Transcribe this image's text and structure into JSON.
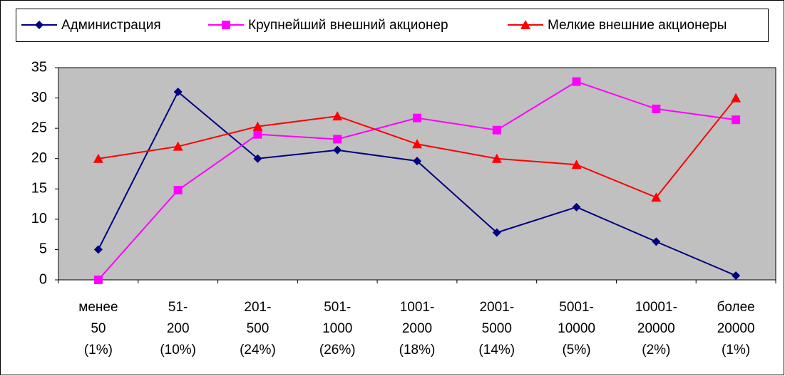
{
  "chart_data": {
    "type": "line",
    "categories": [
      [
        "менее",
        "50",
        "(1%)"
      ],
      [
        "51-",
        "200",
        "(10%)"
      ],
      [
        "201-",
        "500",
        "(24%)"
      ],
      [
        "501-",
        "1000",
        "(26%)"
      ],
      [
        "1001-",
        "2000",
        "(18%)"
      ],
      [
        "2001-",
        "5000",
        "(14%)"
      ],
      [
        "5001-",
        "10000",
        "(5%)"
      ],
      [
        "10001-",
        "20000",
        "(2%)"
      ],
      [
        "более",
        "20000",
        "(1%)"
      ]
    ],
    "series": [
      {
        "name": "Администрация",
        "color": "#000080",
        "marker": "diamond",
        "values": [
          5,
          31,
          20,
          21.4,
          19.6,
          7.8,
          12,
          6.3,
          0.7
        ]
      },
      {
        "name": "Крупнейший внешний акционер",
        "color": "#ff00ff",
        "marker": "square",
        "values": [
          0,
          14.8,
          24,
          23.2,
          26.7,
          24.7,
          32.7,
          28.2,
          26.4
        ]
      },
      {
        "name": "Мелкие внешние акционеры",
        "color": "#ff0000",
        "marker": "triangle",
        "values": [
          20,
          22,
          25.3,
          27,
          22.4,
          20,
          19,
          13.6,
          30
        ]
      }
    ],
    "ylim": [
      0,
      35
    ],
    "yticks": [
      0,
      5,
      10,
      15,
      20,
      25,
      30,
      35
    ],
    "grid": false,
    "legend": "top",
    "plot_background": "#c0c0c0"
  }
}
